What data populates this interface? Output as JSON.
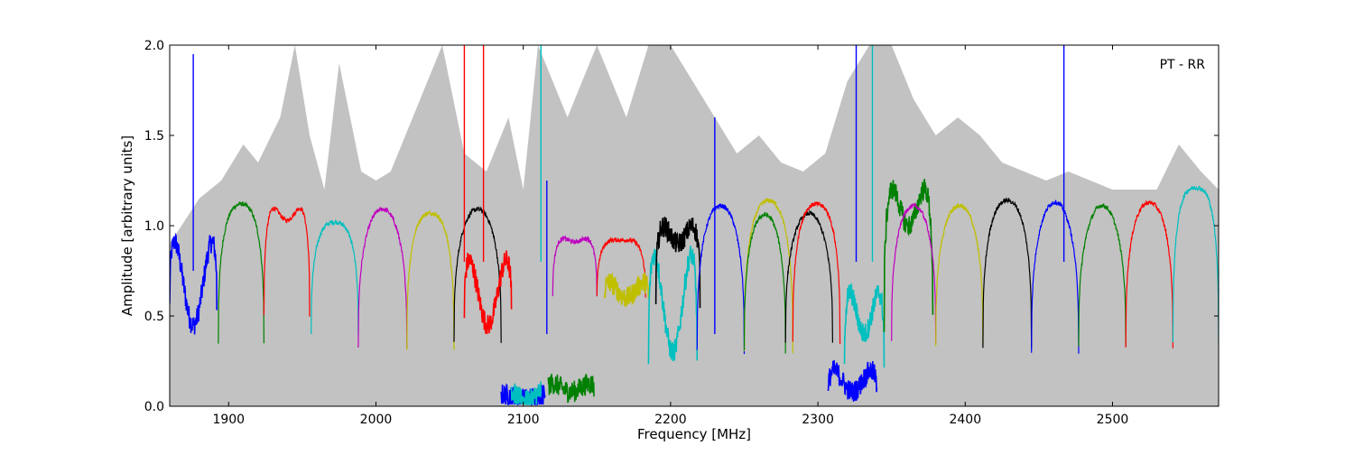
{
  "chart_data": {
    "type": "line",
    "title": "",
    "annotation": "PT - RR",
    "xlabel": "Frequency [MHz]",
    "ylabel": "Amplitude [arbitrary units]",
    "xlim": [
      1860,
      2572
    ],
    "ylim": [
      0.0,
      2.0
    ],
    "xticks": [
      1900,
      2000,
      2100,
      2200,
      2300,
      2400,
      2500
    ],
    "yticks": [
      0.0,
      0.5,
      1.0,
      1.5,
      2.0
    ],
    "ytick_labels": [
      "0.0",
      "0.5",
      "1.0",
      "1.5",
      "2.0"
    ],
    "grid": false,
    "background_series": {
      "color": "#bfbfbf",
      "description_values": [
        [
          1860,
          0.9
        ],
        [
          1880,
          1.15
        ],
        [
          1895,
          1.25
        ],
        [
          1910,
          1.45
        ],
        [
          1920,
          1.35
        ],
        [
          1935,
          1.6
        ],
        [
          1945,
          2.0
        ],
        [
          1955,
          1.5
        ],
        [
          1965,
          1.2
        ],
        [
          1975,
          1.9
        ],
        [
          1990,
          1.3
        ],
        [
          2000,
          1.25
        ],
        [
          2010,
          1.3
        ],
        [
          2020,
          1.5
        ],
        [
          2030,
          1.7
        ],
        [
          2045,
          2.0
        ],
        [
          2060,
          1.4
        ],
        [
          2075,
          1.3
        ],
        [
          2090,
          1.6
        ],
        [
          2100,
          1.2
        ],
        [
          2110,
          2.0
        ],
        [
          2130,
          1.6
        ],
        [
          2150,
          2.0
        ],
        [
          2170,
          1.6
        ],
        [
          2185,
          2.0
        ],
        [
          2200,
          2.0
        ],
        [
          2215,
          1.8
        ],
        [
          2230,
          1.6
        ],
        [
          2245,
          1.4
        ],
        [
          2260,
          1.5
        ],
        [
          2275,
          1.35
        ],
        [
          2290,
          1.3
        ],
        [
          2305,
          1.4
        ],
        [
          2320,
          1.8
        ],
        [
          2335,
          2.0
        ],
        [
          2350,
          2.0
        ],
        [
          2365,
          1.7
        ],
        [
          2380,
          1.5
        ],
        [
          2395,
          1.6
        ],
        [
          2410,
          1.5
        ],
        [
          2425,
          1.35
        ],
        [
          2440,
          1.3
        ],
        [
          2455,
          1.25
        ],
        [
          2470,
          1.3
        ],
        [
          2485,
          1.25
        ],
        [
          2500,
          1.2
        ],
        [
          2515,
          1.2
        ],
        [
          2530,
          1.2
        ],
        [
          2545,
          1.45
        ],
        [
          2560,
          1.3
        ],
        [
          2572,
          1.2
        ]
      ]
    },
    "series": [
      {
        "color": "#0000ff",
        "x_range": [
          1860,
          1892
        ],
        "level": 1.2,
        "dip": 0.45,
        "edge": 0.55,
        "noisy": true
      },
      {
        "color": "#008000",
        "x_range": [
          1893,
          1924
        ],
        "level": 1.2,
        "dip": 1.0,
        "edge": 0.35,
        "noisy": false
      },
      {
        "color": "#ff0000",
        "x_range": [
          1924,
          1955
        ],
        "level": 1.35,
        "dip": 0.55,
        "edge": 0.5,
        "noisy": false
      },
      {
        "color": "#00bfbf",
        "x_range": [
          1956,
          1988
        ],
        "level": 1.1,
        "dip": 0.9,
        "edge": 0.4,
        "noisy": false
      },
      {
        "color": "#bf00bf",
        "x_range": [
          1988,
          2021
        ],
        "level": 1.12,
        "dip": 1.05,
        "edge": 0.32,
        "noisy": false
      },
      {
        "color": "#bfbf00",
        "x_range": [
          2021,
          2053
        ],
        "level": 1.15,
        "dip": 0.95,
        "edge": 0.32,
        "noisy": false
      },
      {
        "color": "#000000",
        "x_range": [
          2053,
          2085
        ],
        "level": 1.12,
        "dip": 1.05,
        "edge": 0.35,
        "noisy": false
      },
      {
        "color": "#ff0000",
        "x_range": [
          2060,
          2092
        ],
        "level": 1.05,
        "dip": 0.45,
        "edge": 0.5,
        "noisy": true
      },
      {
        "color": "#0000ff",
        "x_range": [
          2085,
          2115
        ],
        "level": 0.07,
        "dip": 0.04,
        "edge": 0.06,
        "noisy": true
      },
      {
        "color": "#00bfbf",
        "x_range": [
          2092,
          2112
        ],
        "level": 0.06,
        "dip": 0.03,
        "edge": 0.1,
        "noisy": true
      },
      {
        "color": "#008000",
        "x_range": [
          2117,
          2148
        ],
        "level": 0.15,
        "dip": 0.08,
        "edge": 0.1,
        "noisy": true
      },
      {
        "color": "#bf00bf",
        "x_range": [
          2120,
          2150
        ],
        "level": 1.05,
        "dip": 0.7,
        "edge": 0.6,
        "noisy": false
      },
      {
        "color": "#ff0000",
        "x_range": [
          2150,
          2183
        ],
        "level": 1.0,
        "dip": 0.8,
        "edge": 0.6,
        "noisy": false
      },
      {
        "color": "#bfbf00",
        "x_range": [
          2155,
          2185
        ],
        "level": 0.75,
        "dip": 0.6,
        "edge": 0.6,
        "noisy": true
      },
      {
        "color": "#00bfbf",
        "x_range": [
          2185,
          2218
        ],
        "level": 1.3,
        "dip": 0.3,
        "edge": 0.2,
        "noisy": true
      },
      {
        "color": "#000000",
        "x_range": [
          2190,
          2220
        ],
        "level": 1.2,
        "dip": 0.9,
        "edge": 0.6,
        "noisy": true
      },
      {
        "color": "#0000ff",
        "x_range": [
          2218,
          2250
        ],
        "level": 1.15,
        "dip": 1.05,
        "edge": 0.3,
        "noisy": false
      },
      {
        "color": "#bfbf00",
        "x_range": [
          2250,
          2283
        ],
        "level": 1.2,
        "dip": 1.05,
        "edge": 0.3,
        "noisy": false
      },
      {
        "color": "#008000",
        "x_range": [
          2250,
          2278
        ],
        "level": 1.1,
        "dip": 1.0,
        "edge": 0.3,
        "noisy": false
      },
      {
        "color": "#000000",
        "x_range": [
          2278,
          2310
        ],
        "level": 1.08,
        "dip": 1.05,
        "edge": 0.35,
        "noisy": false
      },
      {
        "color": "#ff0000",
        "x_range": [
          2283,
          2315
        ],
        "level": 1.2,
        "dip": 1.0,
        "edge": 0.35,
        "noisy": false
      },
      {
        "color": "#0000ff",
        "x_range": [
          2307,
          2340
        ],
        "level": 0.3,
        "dip": 0.08,
        "edge": 0.05,
        "noisy": true
      },
      {
        "color": "#00bfbf",
        "x_range": [
          2318,
          2345
        ],
        "level": 0.9,
        "dip": 0.4,
        "edge": 0.2,
        "noisy": true
      },
      {
        "color": "#008000",
        "x_range": [
          2345,
          2378
        ],
        "level": 1.6,
        "dip": 1.0,
        "edge": 0.45,
        "noisy": true
      },
      {
        "color": "#bf00bf",
        "x_range": [
          2350,
          2380
        ],
        "level": 1.15,
        "dip": 1.05,
        "edge": 0.35,
        "noisy": false
      },
      {
        "color": "#bfbf00",
        "x_range": [
          2380,
          2412
        ],
        "level": 1.15,
        "dip": 1.05,
        "edge": 0.33,
        "noisy": false
      },
      {
        "color": "#000000",
        "x_range": [
          2412,
          2445
        ],
        "level": 1.2,
        "dip": 1.05,
        "edge": 0.33,
        "noisy": false
      },
      {
        "color": "#0000ff",
        "x_range": [
          2445,
          2477
        ],
        "level": 1.15,
        "dip": 1.1,
        "edge": 0.3,
        "noisy": false
      },
      {
        "color": "#008000",
        "x_range": [
          2477,
          2509
        ],
        "level": 1.12,
        "dip": 1.1,
        "edge": 0.33,
        "noisy": false
      },
      {
        "color": "#ff0000",
        "x_range": [
          2509,
          2541
        ],
        "level": 1.18,
        "dip": 1.05,
        "edge": 0.33,
        "noisy": false
      },
      {
        "color": "#00bfbf",
        "x_range": [
          2541,
          2572
        ],
        "level": 1.35,
        "dip": 1.0,
        "edge": 0.35,
        "noisy": false
      }
    ],
    "spikes": [
      {
        "x": 1876,
        "y": 1.95,
        "color": "#0000ff"
      },
      {
        "x": 2060,
        "y": 2.0,
        "color": "#ff0000"
      },
      {
        "x": 2073,
        "y": 2.0,
        "color": "#ff0000"
      },
      {
        "x": 2112,
        "y": 2.0,
        "color": "#00bfbf"
      },
      {
        "x": 2116,
        "y": 1.25,
        "color": "#0000ff"
      },
      {
        "x": 2230,
        "y": 1.6,
        "color": "#0000ff"
      },
      {
        "x": 2326,
        "y": 2.0,
        "color": "#0000ff"
      },
      {
        "x": 2337,
        "y": 2.0,
        "color": "#00bfbf"
      },
      {
        "x": 2467,
        "y": 2.0,
        "color": "#0000ff"
      }
    ]
  }
}
